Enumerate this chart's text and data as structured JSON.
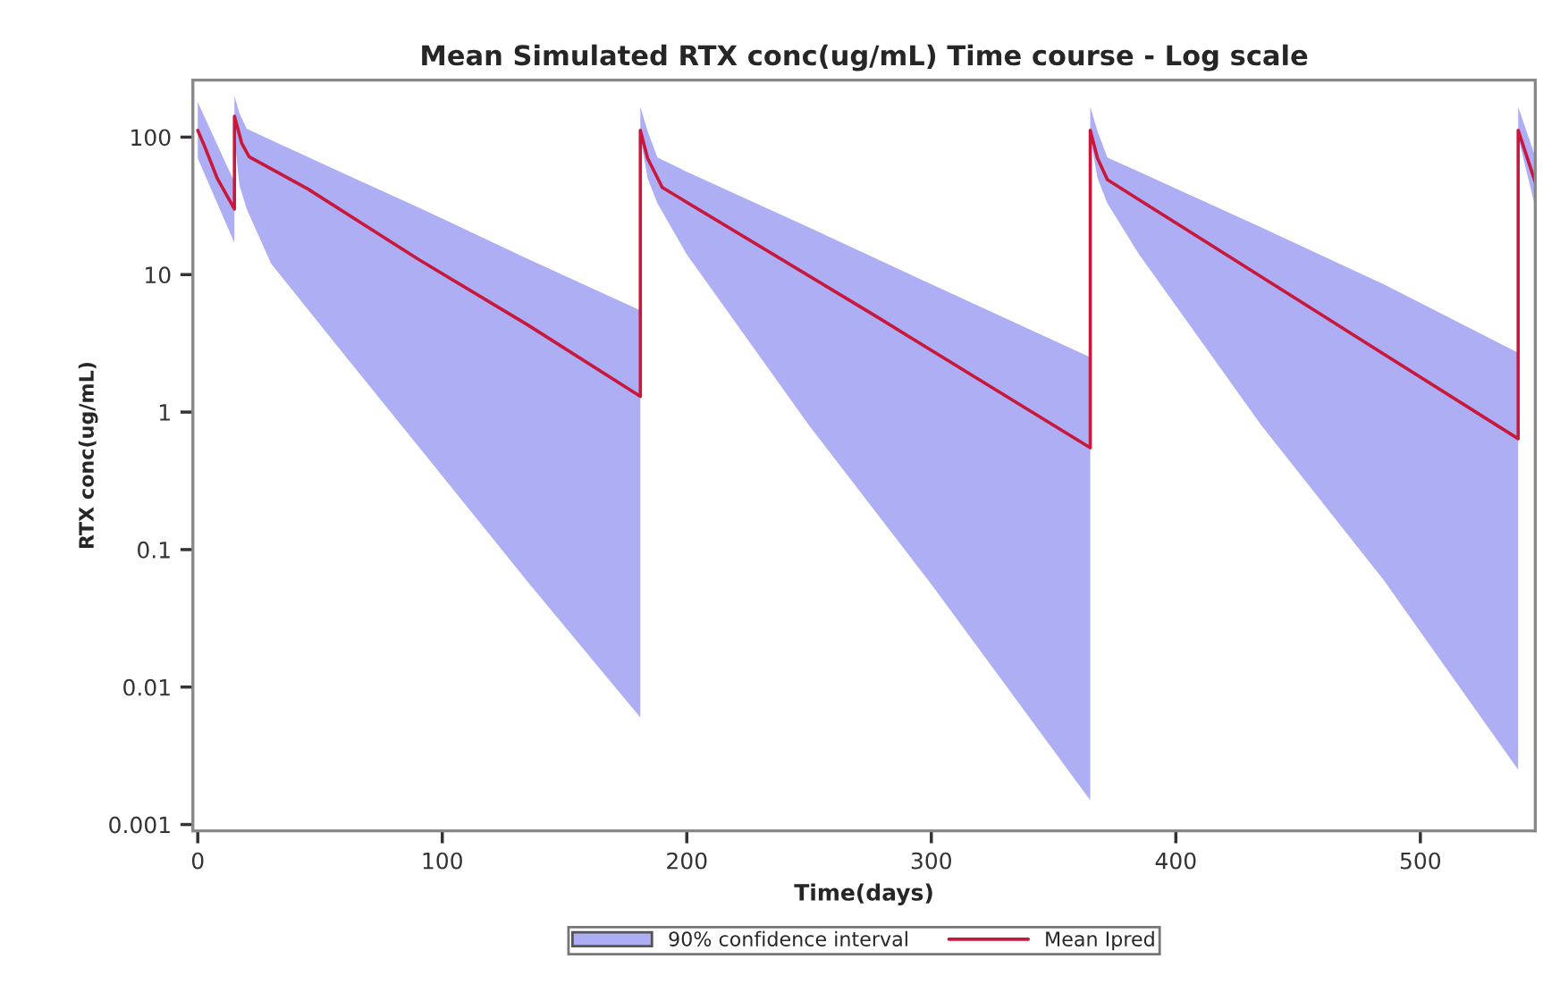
{
  "chart_data": {
    "type": "line",
    "title": "Mean Simulated RTX conc(ug/mL) Time course - Log scale",
    "xlabel": "Time(days)",
    "ylabel": "RTX conc(ug/mL)",
    "log": "y",
    "xlim": [
      -2,
      547
    ],
    "ylim": [
      0.0009,
      260
    ],
    "xticks": [
      0,
      100,
      200,
      300,
      400,
      500
    ],
    "yticks": [
      0.001,
      0.01,
      0.1,
      1,
      10,
      100
    ],
    "grid": false,
    "legend": "bottom",
    "line_style": "solid",
    "marker": "none",
    "series": [
      {
        "type": "area",
        "name": "90% confidence interval",
        "color": "#aeaef5",
        "x": [
          0,
          15,
          15,
          17,
          20,
          30,
          60,
          90,
          135,
          181,
          181,
          184,
          188,
          200,
          250,
          300,
          365,
          365,
          368,
          372,
          385,
          435,
          485,
          540,
          540,
          547
        ],
        "values": [
          null,
          null,
          null,
          null,
          null,
          null,
          null,
          null,
          null,
          null,
          null,
          null,
          null,
          null,
          null,
          null,
          null,
          null,
          null,
          null,
          null,
          null,
          null,
          null,
          null,
          null
        ],
        "upper": [
          180,
          47,
          200,
          150,
          115,
          95,
          54,
          31,
          13,
          5.5,
          166,
          110,
          71,
          56,
          22,
          8.5,
          2.5,
          166,
          110,
          71,
          56,
          22,
          8.5,
          2.7,
          166,
          72
        ],
        "lower": [
          70,
          17,
          100,
          45,
          30,
          12,
          2.6,
          0.57,
          0.058,
          0.006,
          100,
          50,
          33,
          14,
          0.8,
          0.056,
          0.0015,
          100,
          50,
          33,
          14,
          0.8,
          0.06,
          0.0025,
          100,
          31
        ]
      },
      {
        "name": "Mean Ipred",
        "color": "#c8183c",
        "x": [
          0,
          3,
          8,
          15,
          15,
          18,
          21,
          45,
          90,
          135,
          181,
          181,
          184,
          190,
          278,
          365,
          365,
          368,
          372,
          456,
          540,
          540,
          547
        ],
        "values": [
          112,
          84,
          50,
          30,
          142,
          90,
          72,
          42,
          13,
          4.3,
          1.3,
          112,
          70,
          43,
          4.9,
          0.55,
          112,
          70,
          49,
          5.6,
          0.64,
          112,
          47
        ]
      }
    ]
  }
}
